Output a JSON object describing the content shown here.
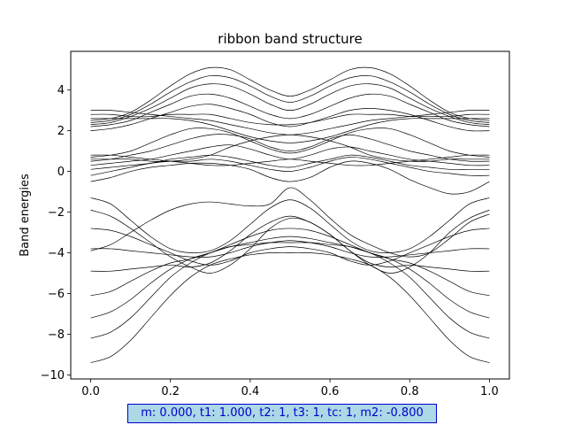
{
  "chart_data": {
    "type": "line",
    "title": "ribbon band structure",
    "xlabel": "",
    "ylabel": "Band energies",
    "xlim": [
      -0.05,
      1.05
    ],
    "ylim": [
      -10.2,
      5.9
    ],
    "xticks": [
      "0.0",
      "0.2",
      "0.4",
      "0.6",
      "0.8",
      "1.0"
    ],
    "yticks": [
      "−10",
      "−8",
      "−6",
      "−4",
      "−2",
      "0",
      "2",
      "4"
    ],
    "grid": false,
    "line_color": "#000000",
    "x": [
      0,
      0.05,
      0.1,
      0.15,
      0.2,
      0.25,
      0.3,
      0.35,
      0.4,
      0.45,
      0.5,
      0.55,
      0.6,
      0.65,
      0.7,
      0.75,
      0.8,
      0.85,
      0.9,
      0.95,
      1
    ],
    "series": [
      {
        "values": [
          -9.4,
          -9.1,
          -8.3,
          -7.2,
          -6.1,
          -5.2,
          -4.6,
          -4.3,
          -4.1,
          -4.0,
          -4.0,
          -4.0,
          -4.1,
          -4.3,
          -4.6,
          -5.2,
          -6.1,
          -7.2,
          -8.3,
          -9.1,
          -9.4
        ]
      },
      {
        "values": [
          -8.2,
          -7.9,
          -7.2,
          -6.2,
          -5.2,
          -4.5,
          -4.0,
          -3.7,
          -3.6,
          -3.5,
          -3.5,
          -3.5,
          -3.6,
          -3.7,
          -4.0,
          -4.5,
          -5.2,
          -6.2,
          -7.2,
          -7.9,
          -8.2
        ]
      },
      {
        "values": [
          -7.2,
          -6.9,
          -6.3,
          -5.5,
          -4.8,
          -4.3,
          -4.0,
          -3.7,
          -3.5,
          -3.3,
          -3.2,
          -3.3,
          -3.5,
          -3.7,
          -4.0,
          -4.3,
          -4.8,
          -5.5,
          -6.3,
          -6.9,
          -7.2
        ]
      },
      {
        "values": [
          -6.1,
          -5.9,
          -5.4,
          -4.9,
          -4.5,
          -4.3,
          -4.0,
          -3.6,
          -3.2,
          -2.9,
          -2.8,
          -2.9,
          -3.2,
          -3.6,
          -4.0,
          -4.3,
          -4.5,
          -4.9,
          -5.4,
          -5.9,
          -6.1
        ]
      },
      {
        "values": [
          -4.9,
          -4.9,
          -4.8,
          -4.7,
          -4.6,
          -4.7,
          -4.5,
          -3.9,
          -3.1,
          -2.5,
          -2.2,
          -2.5,
          -3.1,
          -3.9,
          -4.5,
          -4.7,
          -4.6,
          -4.7,
          -4.8,
          -4.9,
          -4.9
        ]
      },
      {
        "values": [
          -3.8,
          -3.8,
          -3.9,
          -4.0,
          -4.1,
          -4.2,
          -4.2,
          -4.0,
          -3.7,
          -3.5,
          -3.4,
          -3.5,
          -3.7,
          -4.0,
          -4.2,
          -4.2,
          -4.1,
          -4.0,
          -3.9,
          -3.8,
          -3.8
        ]
      },
      {
        "values": [
          -2.8,
          -2.9,
          -3.2,
          -3.6,
          -4.0,
          -4.4,
          -4.6,
          -4.4,
          -4.0,
          -3.8,
          -3.7,
          -3.8,
          -4.0,
          -4.4,
          -4.6,
          -4.4,
          -4.0,
          -3.6,
          -3.2,
          -2.9,
          -2.8
        ]
      },
      {
        "values": [
          -1.9,
          -2.2,
          -2.8,
          -3.5,
          -4.2,
          -4.7,
          -5.0,
          -4.6,
          -3.8,
          -2.8,
          -2.3,
          -2.5,
          -3.1,
          -3.9,
          -4.6,
          -5.0,
          -4.7,
          -4.0,
          -3.0,
          -2.3,
          -1.9
        ]
      },
      {
        "values": [
          -1.3,
          -1.6,
          -2.4,
          -3.2,
          -3.8,
          -4.0,
          -3.9,
          -3.4,
          -2.6,
          -1.8,
          -1.4,
          -1.8,
          -2.6,
          -3.4,
          -3.9,
          -4.0,
          -3.8,
          -3.2,
          -2.4,
          -1.6,
          -1.3
        ]
      },
      {
        "values": [
          -3.9,
          -3.6,
          -3.0,
          -2.4,
          -1.9,
          -1.6,
          -1.5,
          -1.6,
          -1.7,
          -1.6,
          -0.8,
          -1.4,
          -2.3,
          -3.1,
          -3.6,
          -4.0,
          -4.2,
          -4.0,
          -3.3,
          -2.5,
          -2.1
        ]
      },
      {
        "values": [
          -0.5,
          -0.3,
          0.0,
          0.2,
          0.3,
          0.4,
          0.4,
          0.3,
          0.1,
          -0.3,
          -0.5,
          -0.3,
          0.2,
          0.5,
          0.4,
          0.1,
          -0.4,
          -0.8,
          -1.1,
          -1.0,
          -0.5
        ]
      },
      {
        "values": [
          -0.2,
          0.0,
          0.2,
          0.4,
          0.5,
          0.5,
          0.6,
          0.5,
          0.3,
          0.1,
          0.0,
          0.2,
          0.5,
          0.7,
          0.6,
          0.4,
          0.2,
          0.0,
          -0.1,
          -0.2,
          -0.2
        ]
      },
      {
        "values": [
          0.1,
          0.2,
          0.3,
          0.4,
          0.6,
          0.7,
          0.8,
          0.7,
          0.5,
          0.3,
          0.2,
          0.4,
          0.6,
          0.8,
          0.7,
          0.5,
          0.3,
          0.2,
          0.1,
          0.1,
          0.1
        ]
      },
      {
        "values": [
          0.3,
          0.4,
          0.5,
          0.6,
          0.8,
          1.0,
          1.2,
          1.3,
          1.1,
          0.8,
          0.6,
          0.8,
          1.1,
          1.2,
          1.0,
          0.8,
          0.6,
          0.5,
          0.4,
          0.3,
          0.3
        ]
      },
      {
        "values": [
          0.5,
          0.6,
          0.8,
          1.0,
          1.3,
          1.6,
          1.8,
          1.8,
          1.6,
          1.2,
          1.0,
          1.2,
          1.6,
          1.8,
          1.6,
          1.3,
          1.0,
          0.8,
          0.6,
          0.5,
          0.5
        ]
      },
      {
        "values": [
          0.7,
          0.8,
          1.0,
          1.4,
          1.8,
          2.1,
          2.1,
          1.9,
          1.5,
          1.1,
          0.9,
          1.1,
          1.5,
          1.9,
          2.1,
          2.1,
          1.8,
          1.4,
          1.0,
          0.8,
          0.7
        ]
      },
      {
        "values": [
          0.8,
          0.8,
          0.7,
          0.6,
          0.5,
          0.4,
          0.3,
          0.3,
          0.4,
          0.5,
          0.6,
          0.5,
          0.4,
          0.3,
          0.3,
          0.4,
          0.5,
          0.6,
          0.7,
          0.8,
          0.8
        ]
      },
      {
        "values": [
          0.6,
          0.6,
          0.6,
          0.5,
          0.5,
          0.6,
          0.8,
          1.2,
          1.5,
          1.7,
          1.8,
          1.7,
          1.5,
          1.2,
          0.8,
          0.6,
          0.5,
          0.5,
          0.6,
          0.6,
          0.6
        ]
      },
      {
        "values": [
          2.0,
          2.1,
          2.3,
          2.6,
          2.9,
          3.2,
          3.3,
          3.1,
          2.8,
          2.4,
          2.2,
          2.4,
          2.7,
          3.0,
          3.1,
          3.0,
          2.8,
          2.5,
          2.2,
          2.0,
          2.0
        ]
      },
      {
        "values": [
          2.2,
          2.3,
          2.5,
          2.9,
          3.3,
          3.7,
          3.8,
          3.6,
          3.2,
          2.8,
          2.6,
          2.8,
          3.2,
          3.6,
          3.8,
          3.7,
          3.3,
          2.9,
          2.5,
          2.3,
          2.2
        ]
      },
      {
        "values": [
          2.3,
          2.4,
          2.7,
          3.1,
          3.6,
          4.1,
          4.3,
          4.2,
          3.8,
          3.3,
          3.0,
          3.3,
          3.8,
          4.2,
          4.3,
          4.1,
          3.6,
          3.1,
          2.7,
          2.4,
          2.3
        ]
      },
      {
        "values": [
          2.4,
          2.5,
          2.8,
          3.3,
          3.9,
          4.4,
          4.7,
          4.6,
          4.2,
          3.7,
          3.4,
          3.7,
          4.2,
          4.6,
          4.7,
          4.4,
          3.9,
          3.3,
          2.8,
          2.5,
          2.4
        ]
      },
      {
        "values": [
          2.5,
          2.6,
          2.9,
          3.5,
          4.2,
          4.8,
          5.1,
          5.0,
          4.5,
          4.0,
          3.7,
          4.0,
          4.5,
          5.0,
          5.1,
          4.8,
          4.2,
          3.5,
          2.9,
          2.6,
          2.5
        ]
      },
      {
        "values": [
          3.0,
          3.0,
          2.9,
          2.8,
          2.7,
          2.6,
          2.5,
          2.3,
          2.1,
          1.9,
          1.8,
          1.9,
          2.1,
          2.3,
          2.5,
          2.6,
          2.7,
          2.8,
          2.9,
          3.0,
          3.0
        ]
      },
      {
        "values": [
          2.8,
          2.8,
          2.7,
          2.7,
          2.8,
          2.8,
          2.8,
          2.6,
          2.4,
          2.3,
          2.3,
          2.4,
          2.6,
          2.8,
          2.8,
          2.8,
          2.7,
          2.7,
          2.7,
          2.8,
          2.8
        ]
      },
      {
        "values": [
          2.6,
          2.6,
          2.6,
          2.6,
          2.6,
          2.5,
          2.3,
          2.0,
          1.7,
          1.5,
          1.4,
          1.5,
          1.7,
          2.0,
          2.3,
          2.5,
          2.6,
          2.6,
          2.6,
          2.6,
          2.6
        ]
      }
    ]
  },
  "param_box": {
    "text": "m: 0.000, t1: 1.000, t2: 1, t3: 1, tc: 1, m2: -0.800"
  }
}
